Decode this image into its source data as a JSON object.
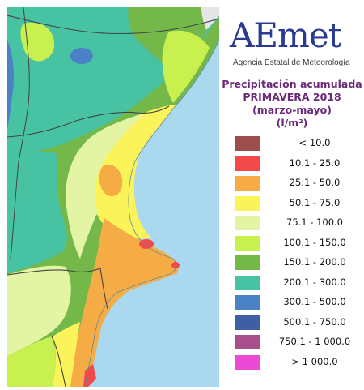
{
  "logo": {
    "text": "AEmet",
    "subtitle": "Agencia Estatal de Meteorología"
  },
  "title": {
    "line1": "Precipitación acumulada",
    "line2": "PRIMAVERA 2018",
    "line3": "(marzo-mayo)",
    "line4": "(l/m²)"
  },
  "legend": [
    {
      "label": "< 10.0",
      "color": "#9c4e4e"
    },
    {
      "label": "10.1 - 25.0",
      "color": "#f24a4a"
    },
    {
      "label": "25.1 - 50.0",
      "color": "#f5ac44"
    },
    {
      "label": "50.1 - 75.0",
      "color": "#fbf35a"
    },
    {
      "label": "75.1 - 100.0",
      "color": "#e3f5a4"
    },
    {
      "label": "100.1 - 150.0",
      "color": "#c8f04e"
    },
    {
      "label": "150.1 - 200.0",
      "color": "#74b84a"
    },
    {
      "label": "200.1 - 300.0",
      "color": "#47c2a3"
    },
    {
      "label": "300.1 - 500.0",
      "color": "#4b82c6"
    },
    {
      "label": "500.1 - 750.0",
      "color": "#3f5ea4"
    },
    {
      "label": "750.1 - 1 000.0",
      "color": "#a8508c"
    },
    {
      "label": "> 1 000.0",
      "color": "#ea4ad6"
    }
  ],
  "map": {
    "sea_color": "#a9d8ef",
    "land_outside_color": "#e6e6e6"
  }
}
